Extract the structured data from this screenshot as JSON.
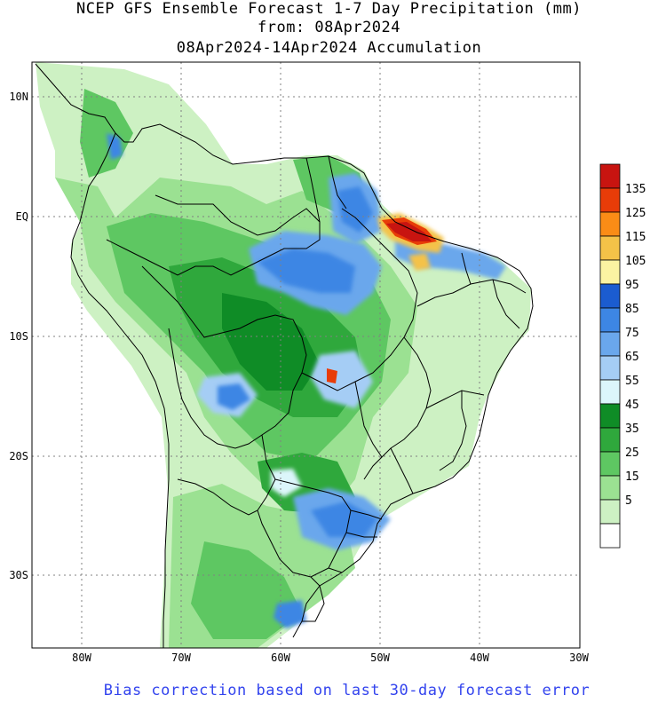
{
  "title": {
    "line1": "NCEP GFS Ensemble Forecast 1-7 Day Precipitation (mm)",
    "line2": "from: 08Apr2024",
    "line3": "08Apr2024-14Apr2024 Accumulation"
  },
  "footer_note": "Bias correction based on last 30-day forecast error",
  "colors": {
    "footer_text": "#3344ee"
  },
  "map": {
    "lon_ticks": [
      "80W",
      "70W",
      "60W",
      "50W",
      "40W",
      "30W"
    ],
    "lat_ticks": [
      "10N",
      "EQ",
      "10S",
      "20S",
      "30S"
    ]
  },
  "legend": {
    "labels": [
      "135",
      "125",
      "115",
      "105",
      "95",
      "85",
      "75",
      "65",
      "55",
      "45",
      "35",
      "25",
      "15",
      "5"
    ],
    "colors": [
      "#c81410",
      "#e83c08",
      "#fa8c16",
      "#f4c248",
      "#fbf3a2",
      "#1b5cd0",
      "#3d86e4",
      "#6aa7ec",
      "#a5cdf5",
      "#dcf6fb",
      "#0f8c26",
      "#2fa83c",
      "#5ec762",
      "#9be192",
      "#cdf1c3",
      "#ffffff"
    ]
  }
}
